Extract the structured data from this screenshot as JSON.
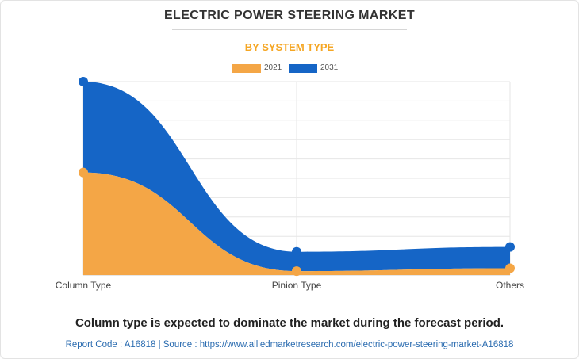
{
  "header": {
    "title": "ELECTRIC POWER STEERING MARKET",
    "subtitle": "BY SYSTEM TYPE"
  },
  "legend": [
    {
      "label": "2021",
      "color": "#f4a646"
    },
    {
      "label": "2031",
      "color": "#1565c6"
    }
  ],
  "chart_data": {
    "type": "area",
    "title": "ELECTRIC POWER STEERING MARKET",
    "subtitle": "BY SYSTEM TYPE",
    "categories": [
      "Column Type",
      "Pinion Type",
      "Others"
    ],
    "series": [
      {
        "name": "2021",
        "values": [
          5.3,
          0.2,
          0.35
        ],
        "color": "#f4a646"
      },
      {
        "name": "2031",
        "values": [
          10.0,
          1.2,
          1.45
        ],
        "color": "#1565c6"
      }
    ],
    "ylim": [
      0,
      10
    ],
    "y_tick_labels_shown": false,
    "grid": true,
    "legend_position": "top-center"
  },
  "footer": {
    "takeaway": "Column type is expected to dominate the market during the forecast period.",
    "source": "Report Code : A16818  |  Source : https://www.alliedmarketresearch.com/electric-power-steering-market-A16818"
  }
}
